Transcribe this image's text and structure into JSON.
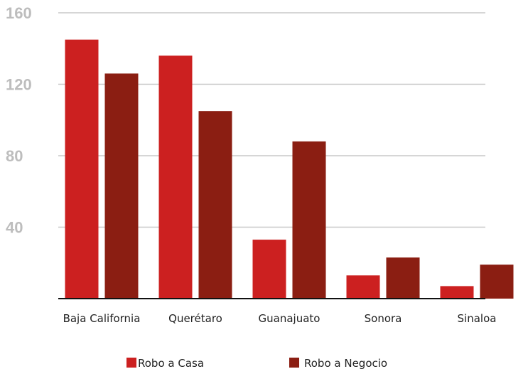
{
  "chart_data": {
    "type": "bar",
    "categories": [
      "Baja California",
      "Querétaro",
      "Guanajuato",
      "Sonora",
      "Sinaloa"
    ],
    "series": [
      {
        "name": "Robo a Casa",
        "color": "#cc2020",
        "values": [
          145,
          136,
          33,
          13,
          7
        ]
      },
      {
        "name": "Robo a Negocio",
        "color": "#8b1e12",
        "values": [
          126,
          105,
          88,
          23,
          19
        ]
      }
    ],
    "yticks": [
      40,
      80,
      120,
      160
    ],
    "ylim": [
      0,
      160
    ],
    "grid": true,
    "legend_position": "bottom",
    "title": "",
    "xlabel": "",
    "ylabel": ""
  }
}
